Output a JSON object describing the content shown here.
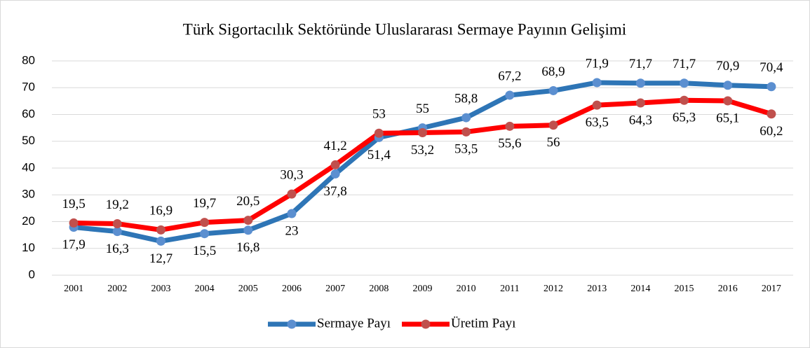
{
  "chart_data": {
    "type": "line",
    "title": "Türk Sigortacılık Sektöründe Uluslararası Sermaye Payının Gelişimi",
    "categories": [
      "2001",
      "2002",
      "2003",
      "2004",
      "2005",
      "2006",
      "2007",
      "2008",
      "2009",
      "2010",
      "2011",
      "2012",
      "2013",
      "2014",
      "2015",
      "2016",
      "2017"
    ],
    "series": [
      {
        "name": "Sermaye Payı",
        "color": "#2e75b6",
        "marker_color": "#5b8fd0",
        "values": [
          17.9,
          16.3,
          12.7,
          15.5,
          16.8,
          23,
          37.8,
          51.4,
          55,
          58.8,
          67.2,
          68.9,
          71.9,
          71.7,
          71.7,
          70.9,
          70.4
        ],
        "value_labels": [
          "17,9",
          "16,3",
          "12,7",
          "15,5",
          "16,8",
          "23",
          "37,8",
          "51,4",
          "55",
          "58,8",
          "67,2",
          "68,9",
          "71,9",
          "71,7",
          "71,7",
          "70,9",
          "70,4"
        ]
      },
      {
        "name": "Üretim Payı",
        "color": "#ff0000",
        "marker_color": "#c0504d",
        "values": [
          19.5,
          19.2,
          16.9,
          19.7,
          20.5,
          30.3,
          41.2,
          53,
          53.2,
          53.5,
          55.6,
          56,
          63.5,
          64.3,
          65.3,
          65.1,
          60.2
        ],
        "value_labels": [
          "19,5",
          "19,2",
          "16,9",
          "19,7",
          "20,5",
          "30,3",
          "41,2",
          "53",
          "53,2",
          "53,5",
          "55,6",
          "56",
          "63,5",
          "64,3",
          "65,3",
          "65,1",
          "60,2"
        ]
      }
    ],
    "ylim": [
      0,
      80
    ],
    "yticks": [
      0,
      10,
      20,
      30,
      40,
      50,
      60,
      70,
      80
    ],
    "grid": true,
    "legend": "bottom"
  }
}
